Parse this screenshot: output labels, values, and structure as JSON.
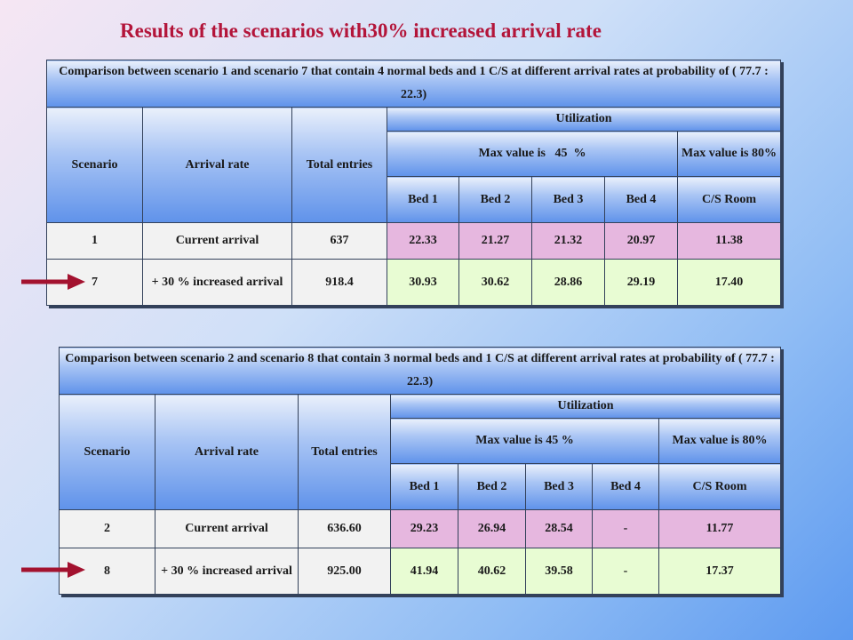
{
  "title": "Results of the scenarios with30% increased arrival rate",
  "tables": [
    {
      "caption": "Comparison between scenario 1 and scenario 7 that contain 4 normal beds and 1 C/S at different arrival rates at probability of ( 77.7 : 22.3)",
      "h_scenario": "Scenario",
      "h_arrival": "Arrival rate",
      "h_total": "Total entries",
      "h_util": "Utilization",
      "h_max45": "Max value is   45  %",
      "h_max80": "Max value is 80%",
      "h_bed1": "Bed 1",
      "h_bed2": "Bed 2",
      "h_bed3": "Bed 3",
      "h_bed4": "Bed 4",
      "h_cs": "C/S Room",
      "rows": [
        {
          "scenario": "1",
          "arrival": "Current arrival",
          "total": "637",
          "bed1": "22.33",
          "bed2": "21.27",
          "bed3": "21.32",
          "bed4": "20.97",
          "cs": "11.38"
        },
        {
          "scenario": "7",
          "arrival": "+ 30 % increased arrival",
          "total": "918.4",
          "bed1": "30.93",
          "bed2": "30.62",
          "bed3": "28.86",
          "bed4": "29.19",
          "cs": "17.40"
        }
      ]
    },
    {
      "caption": "Comparison between scenario 2 and scenario 8 that contain 3 normal beds and 1 C/S at different arrival rates at probability of ( 77.7 : 22.3)",
      "h_scenario": "Scenario",
      "h_arrival": "Arrival rate",
      "h_total": "Total entries",
      "h_util": "Utilization",
      "h_max45": "Max value is 45 %",
      "h_max80": "Max value is 80%",
      "h_bed1": "Bed 1",
      "h_bed2": "Bed 2",
      "h_bed3": "Bed 3",
      "h_bed4": "Bed 4",
      "h_cs": "C/S Room",
      "rows": [
        {
          "scenario": "2",
          "arrival": "Current arrival",
          "total": "636.60",
          "bed1": "29.23",
          "bed2": "26.94",
          "bed3": "28.54",
          "bed4": "-",
          "cs": "11.77"
        },
        {
          "scenario": "8",
          "arrival": "+ 30 % increased arrival",
          "total": "925.00",
          "bed1": "41.94",
          "bed2": "40.62",
          "bed3": "39.58",
          "bed4": "-",
          "cs": "17.37"
        }
      ]
    }
  ],
  "colors": {
    "title": "#b3153a",
    "arrow": "#a3122f",
    "row_current": "#e6b7df",
    "row_increased": "#e8fcd3"
  }
}
